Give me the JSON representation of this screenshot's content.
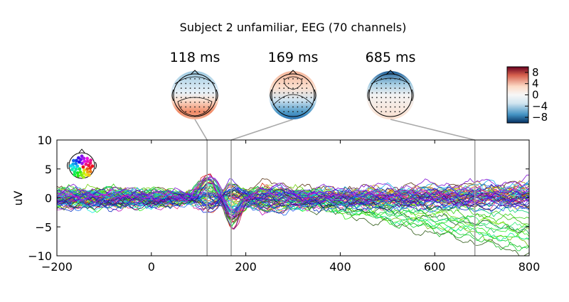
{
  "chart_data": {
    "type": "line",
    "title": "Subject 2 unfamiliar, EEG (70 channels)",
    "xlabel": "",
    "ylabel": "uV",
    "xlim": [
      -200,
      800
    ],
    "ylim": [
      -10,
      10
    ],
    "x_ticks": [
      "−200",
      "0",
      "200",
      "400",
      "600",
      "800"
    ],
    "y_ticks": [
      "10",
      "5",
      "0",
      "−5",
      "−10"
    ],
    "channel_count": 70,
    "markers": [
      {
        "label": "118 ms",
        "time": 118
      },
      {
        "label": "169 ms",
        "time": 169
      },
      {
        "label": "685 ms",
        "time": 685
      }
    ],
    "colorbar": {
      "ticks": [
        "8",
        "4",
        "0",
        "−4",
        "−8"
      ],
      "range": [
        -10,
        10
      ],
      "colormap": "RdBu_r"
    },
    "grid": false,
    "sensor_legend": "top-left"
  }
}
